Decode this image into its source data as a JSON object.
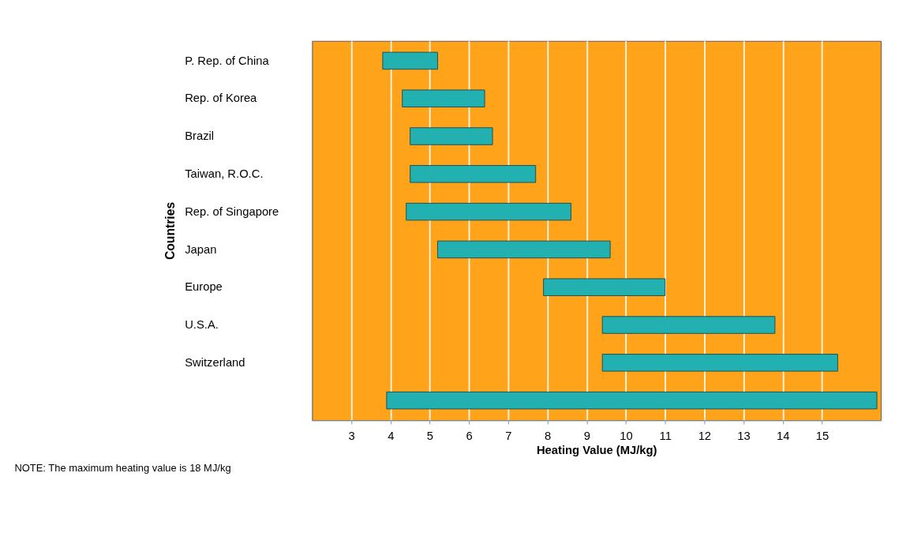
{
  "chart_data": {
    "type": "bar",
    "orientation": "horizontal",
    "xlabel": "Heating Value (MJ/kg)",
    "ylabel": "Countries",
    "categories": [
      "P. Rep. of China",
      "Rep. of Korea",
      "Brazil",
      "Taiwan, R.O.C.",
      "Rep. of Singapore",
      "Japan",
      "Europe",
      "U.S.A.",
      "Switzerland",
      null
    ],
    "base": [
      3.8,
      4.3,
      4.5,
      4.5,
      4.4,
      5.2,
      7.9,
      9.4,
      9.4,
      3.9
    ],
    "values": [
      1.4,
      2.1,
      2.1,
      3.2,
      4.2,
      4.4,
      3.1,
      4.4,
      6.0,
      12.5
    ],
    "color": "#22b0b0",
    "xlim": [
      2,
      16.5
    ],
    "xticks": [
      3,
      4,
      5,
      6,
      7,
      8,
      9,
      10,
      11,
      12,
      13,
      14,
      15
    ],
    "grid": "x",
    "annotations": [
      "NOTE: The maximum heating value is 18 MJ/kg"
    ]
  }
}
